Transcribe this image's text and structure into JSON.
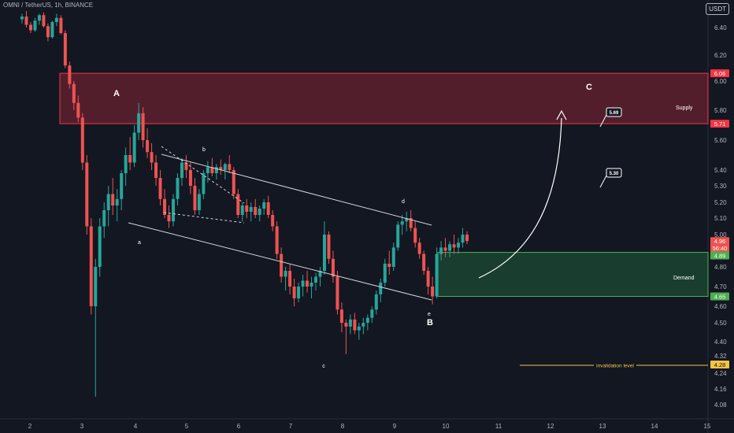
{
  "header": {
    "symbol_title": "OMNI / TetherUS, 1h, BINANCE",
    "currency": "USDT"
  },
  "colors": {
    "background": "#131722",
    "up": "#26a69a",
    "down": "#ef5350",
    "supply_fill": "#5b1f2d",
    "supply_border": "#f23645",
    "demand_fill": "#1b4332",
    "demand_border": "#4caf50",
    "invalidation": "#f5c542",
    "channel": "#d1d4dc"
  },
  "chart_data": {
    "type": "candlestick",
    "y_ticks": [
      "6.40",
      "6.20",
      "6.00",
      "5.80",
      "5.60",
      "5.40",
      "5.30",
      "5.20",
      "5.10",
      "5.00",
      "4.80",
      "4.70",
      "4.60",
      "4.50",
      "4.40",
      "4.32",
      "4.24",
      "4.16",
      "4.08"
    ],
    "x_ticks": [
      "2",
      "3",
      "4",
      "5",
      "6",
      "7",
      "8",
      "9",
      "10",
      "11",
      "12",
      "13",
      "14",
      "15"
    ],
    "price_tags": [
      {
        "label": "6.06",
        "color": "#f23645"
      },
      {
        "label": "5.71",
        "color": "#f23645"
      },
      {
        "label": "4.96",
        "color": "#ef5350"
      },
      {
        "label": "56:40",
        "color": "#ef5350"
      },
      {
        "label": "4.89",
        "color": "#4caf50"
      },
      {
        "label": "4.65",
        "color": "#4caf50"
      },
      {
        "label": "4.28",
        "color": "#f5c542"
      }
    ],
    "zones": {
      "supply": {
        "label": "Supply",
        "top": 6.06,
        "bottom": 5.71
      },
      "demand": {
        "label": "Demand",
        "top": 4.89,
        "bottom": 4.65
      }
    },
    "invalidation": {
      "label": "invalidation level",
      "value": 4.28
    },
    "wave_labels": [
      "A",
      "B",
      "C",
      "a",
      "b",
      "c",
      "d",
      "e"
    ],
    "targets": [
      "5.69",
      "5.30"
    ],
    "candles": [
      [
        6.46,
        6.5,
        6.43,
        6.48
      ],
      [
        6.48,
        6.52,
        6.4,
        6.42
      ],
      [
        6.42,
        6.44,
        6.36,
        6.38
      ],
      [
        6.38,
        6.47,
        6.37,
        6.45
      ],
      [
        6.45,
        6.5,
        6.42,
        6.49
      ],
      [
        6.49,
        6.51,
        6.4,
        6.41
      ],
      [
        6.41,
        6.43,
        6.3,
        6.33
      ],
      [
        6.33,
        6.45,
        6.32,
        6.44
      ],
      [
        6.44,
        6.5,
        6.41,
        6.47
      ],
      [
        6.47,
        6.49,
        6.35,
        6.36
      ],
      [
        6.36,
        6.38,
        6.1,
        6.12
      ],
      [
        6.12,
        6.15,
        5.95,
        5.98
      ],
      [
        5.98,
        6.0,
        5.8,
        5.85
      ],
      [
        5.85,
        5.9,
        5.72,
        5.75
      ],
      [
        5.75,
        5.78,
        5.4,
        5.45
      ],
      [
        5.45,
        5.5,
        5.0,
        5.05
      ],
      [
        5.05,
        5.1,
        4.55,
        4.6
      ],
      [
        4.6,
        4.85,
        4.12,
        4.8
      ],
      [
        4.8,
        5.1,
        4.75,
        5.05
      ],
      [
        5.05,
        5.2,
        4.98,
        5.15
      ],
      [
        5.15,
        5.3,
        5.05,
        5.25
      ],
      [
        5.25,
        5.35,
        5.12,
        5.18
      ],
      [
        5.18,
        5.28,
        5.08,
        5.22
      ],
      [
        5.22,
        5.4,
        5.15,
        5.38
      ],
      [
        5.38,
        5.55,
        5.3,
        5.5
      ],
      [
        5.5,
        5.62,
        5.4,
        5.45
      ],
      [
        5.45,
        5.7,
        5.42,
        5.65
      ],
      [
        5.65,
        5.85,
        5.6,
        5.78
      ],
      [
        5.78,
        5.82,
        5.55,
        5.6
      ],
      [
        5.6,
        5.68,
        5.48,
        5.52
      ],
      [
        5.52,
        5.58,
        5.4,
        5.45
      ],
      [
        5.45,
        5.5,
        5.3,
        5.35
      ],
      [
        5.35,
        5.4,
        5.18,
        5.22
      ],
      [
        5.22,
        5.28,
        5.1,
        5.12
      ],
      [
        5.12,
        5.18,
        5.04,
        5.08
      ],
      [
        5.08,
        5.25,
        5.05,
        5.22
      ],
      [
        5.22,
        5.38,
        5.18,
        5.35
      ],
      [
        5.35,
        5.48,
        5.3,
        5.45
      ],
      [
        5.45,
        5.5,
        5.35,
        5.4
      ],
      [
        5.4,
        5.45,
        5.25,
        5.3
      ],
      [
        5.3,
        5.35,
        5.12,
        5.15
      ],
      [
        5.15,
        5.28,
        5.12,
        5.25
      ],
      [
        5.25,
        5.4,
        5.22,
        5.38
      ],
      [
        5.38,
        5.46,
        5.32,
        5.42
      ],
      [
        5.42,
        5.48,
        5.36,
        5.38
      ],
      [
        5.38,
        5.44,
        5.34,
        5.42
      ],
      [
        5.42,
        5.47,
        5.37,
        5.4
      ],
      [
        5.4,
        5.45,
        5.34,
        5.44
      ],
      [
        5.44,
        5.5,
        5.38,
        5.4
      ],
      [
        5.4,
        5.42,
        5.22,
        5.25
      ],
      [
        5.25,
        5.28,
        5.1,
        5.12
      ],
      [
        5.12,
        5.2,
        5.08,
        5.18
      ],
      [
        5.18,
        5.22,
        5.1,
        5.14
      ],
      [
        5.14,
        5.2,
        5.08,
        5.17
      ],
      [
        5.17,
        5.22,
        5.1,
        5.12
      ],
      [
        5.12,
        5.18,
        5.08,
        5.16
      ],
      [
        5.16,
        5.22,
        5.12,
        5.2
      ],
      [
        5.2,
        5.24,
        5.1,
        5.12
      ],
      [
        5.12,
        5.15,
        5.02,
        5.05
      ],
      [
        5.05,
        5.08,
        4.85,
        4.88
      ],
      [
        4.88,
        4.92,
        4.72,
        4.75
      ],
      [
        4.75,
        4.8,
        4.68,
        4.78
      ],
      [
        4.78,
        4.82,
        4.66,
        4.7
      ],
      [
        4.7,
        4.74,
        4.6,
        4.64
      ],
      [
        4.64,
        4.72,
        4.62,
        4.7
      ],
      [
        4.7,
        4.76,
        4.65,
        4.73
      ],
      [
        4.73,
        4.78,
        4.67,
        4.7
      ],
      [
        4.7,
        4.75,
        4.64,
        4.72
      ],
      [
        4.72,
        4.77,
        4.68,
        4.75
      ],
      [
        4.75,
        4.8,
        4.7,
        4.78
      ],
      [
        4.78,
        5.08,
        4.76,
        5.0
      ],
      [
        5.0,
        5.02,
        4.82,
        4.85
      ],
      [
        4.85,
        4.9,
        4.72,
        4.75
      ],
      [
        4.75,
        4.78,
        4.55,
        4.58
      ],
      [
        4.58,
        4.62,
        4.45,
        4.5
      ],
      [
        4.5,
        4.52,
        4.33,
        4.48
      ],
      [
        4.48,
        4.55,
        4.44,
        4.52
      ],
      [
        4.52,
        4.56,
        4.44,
        4.46
      ],
      [
        4.46,
        4.5,
        4.41,
        4.48
      ],
      [
        4.48,
        4.53,
        4.44,
        4.5
      ],
      [
        4.5,
        4.55,
        4.46,
        4.53
      ],
      [
        4.53,
        4.6,
        4.5,
        4.58
      ],
      [
        4.58,
        4.68,
        4.55,
        4.66
      ],
      [
        4.66,
        4.74,
        4.62,
        4.72
      ],
      [
        4.72,
        4.85,
        4.7,
        4.82
      ],
      [
        4.82,
        4.9,
        4.76,
        4.8
      ],
      [
        4.8,
        4.95,
        4.78,
        4.92
      ],
      [
        4.92,
        5.08,
        4.9,
        5.06
      ],
      [
        5.06,
        5.12,
        5.0,
        5.08
      ],
      [
        5.08,
        5.14,
        5.02,
        5.1
      ],
      [
        5.1,
        5.15,
        5.02,
        5.04
      ],
      [
        5.04,
        5.08,
        4.92,
        4.95
      ],
      [
        4.95,
        4.98,
        4.85,
        4.88
      ],
      [
        4.88,
        4.9,
        4.76,
        4.78
      ],
      [
        4.78,
        4.8,
        4.66,
        4.7
      ],
      [
        4.7,
        4.75,
        4.61,
        4.65
      ],
      [
        4.65,
        4.92,
        4.64,
        4.88
      ],
      [
        4.88,
        4.96,
        4.84,
        4.92
      ],
      [
        4.92,
        4.98,
        4.86,
        4.9
      ],
      [
        4.9,
        4.96,
        4.86,
        4.94
      ],
      [
        4.94,
        5.0,
        4.88,
        4.92
      ],
      [
        4.92,
        4.98,
        4.88,
        4.95
      ],
      [
        4.95,
        5.04,
        4.92,
        5.0
      ],
      [
        5.0,
        5.02,
        4.94,
        4.96
      ]
    ]
  }
}
